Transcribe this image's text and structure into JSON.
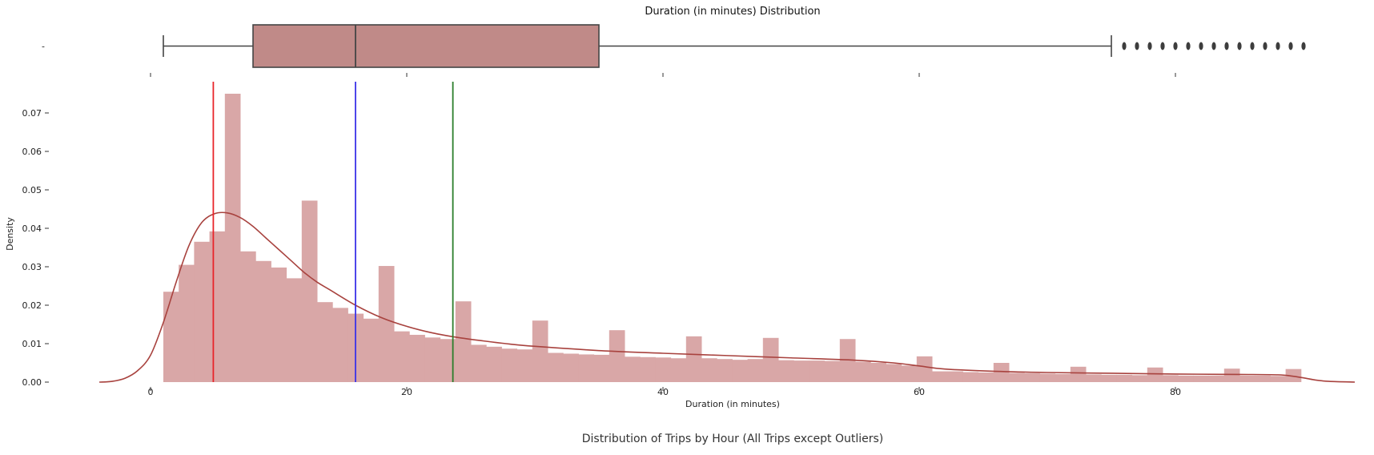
{
  "chart_data": [
    {
      "type": "box",
      "title": "Duration (in minutes) Distribution",
      "orientation": "horizontal",
      "ytick_label": "-",
      "xlim": [
        -5,
        95
      ],
      "xticks": [
        0,
        20,
        40,
        60,
        80
      ],
      "whisker_low": 1,
      "q1": 8,
      "median": 16,
      "q3": 35,
      "whisker_high": 75,
      "outliers": [
        76,
        77,
        78,
        79,
        80,
        81,
        82,
        83,
        84,
        85,
        86,
        87,
        88,
        89,
        90
      ],
      "colors": {
        "box_fill": "#c08a88",
        "line": "#444444"
      }
    },
    {
      "type": "histogram",
      "xlabel": "Duration (in minutes)",
      "ylabel": "Density",
      "xlim": [
        -5,
        95
      ],
      "ylim": [
        0,
        0.078
      ],
      "xticks": [
        0,
        20,
        40,
        60,
        80
      ],
      "xtick_labels": [
        "0",
        "20",
        "40",
        "60",
        "80"
      ],
      "yticks": [
        0,
        0.01,
        0.02,
        0.03,
        0.04,
        0.05,
        0.06,
        0.07
      ],
      "ytick_labels": [
        "0.00",
        "0.01",
        "0.02",
        "0.03",
        "0.04",
        "0.05",
        "0.06",
        "0.07"
      ],
      "bin_start": 1,
      "bin_width": 1.2,
      "values": [
        0.0235,
        0.0305,
        0.0365,
        0.0392,
        0.075,
        0.034,
        0.0315,
        0.0298,
        0.027,
        0.0472,
        0.0208,
        0.0193,
        0.0178,
        0.0165,
        0.0302,
        0.0132,
        0.0123,
        0.0116,
        0.0112,
        0.021,
        0.0097,
        0.0092,
        0.0087,
        0.0085,
        0.016,
        0.0076,
        0.0074,
        0.0072,
        0.0071,
        0.0135,
        0.0066,
        0.0065,
        0.0064,
        0.0062,
        0.0119,
        0.0062,
        0.006,
        0.0058,
        0.006,
        0.0115,
        0.0057,
        0.0056,
        0.0056,
        0.0055,
        0.0112,
        0.0053,
        0.005,
        0.0047,
        0.0043,
        0.0067,
        0.0028,
        0.0028,
        0.0026,
        0.0025,
        0.005,
        0.0024,
        0.0023,
        0.0022,
        0.0021,
        0.004,
        0.002,
        0.0019,
        0.0019,
        0.0018,
        0.0038,
        0.0018,
        0.0017,
        0.0017,
        0.0017,
        0.0035,
        0.0017,
        0.0017,
        0.0016,
        0.0034
      ],
      "kde_x": [
        -4,
        -3,
        -2,
        -1,
        0,
        1,
        2,
        3,
        4,
        5,
        6,
        7,
        8,
        9,
        10,
        11,
        12,
        13,
        14,
        16,
        18,
        20,
        22,
        24,
        26,
        28,
        30,
        35,
        40,
        45,
        50,
        55,
        58,
        60,
        62,
        66,
        70,
        75,
        80,
        85,
        88,
        89,
        90,
        91,
        92,
        94
      ],
      "kde_y": [
        0,
        0.0002,
        0.001,
        0.003,
        0.007,
        0.0155,
        0.026,
        0.0355,
        0.0415,
        0.0438,
        0.044,
        0.0428,
        0.0405,
        0.0375,
        0.0345,
        0.0315,
        0.0285,
        0.026,
        0.024,
        0.02,
        0.0168,
        0.0145,
        0.0128,
        0.0116,
        0.0107,
        0.0099,
        0.0093,
        0.0082,
        0.0075,
        0.0069,
        0.0063,
        0.0057,
        0.005,
        0.0042,
        0.0034,
        0.0028,
        0.0025,
        0.0023,
        0.0021,
        0.002,
        0.0019,
        0.0016,
        0.0011,
        0.0005,
        0.0002,
        0
      ],
      "vlines": [
        {
          "x": 4.9,
          "color": "#e8242a"
        },
        {
          "x": 16,
          "color": "#3a32e8"
        },
        {
          "x": 23.6,
          "color": "#2a7d2a"
        }
      ],
      "colors": {
        "bar_fill": "#d9a7a7",
        "kde_line": "#a8423e"
      }
    }
  ],
  "caption": "Distribution of Trips by Hour (All Trips except Outliers)"
}
